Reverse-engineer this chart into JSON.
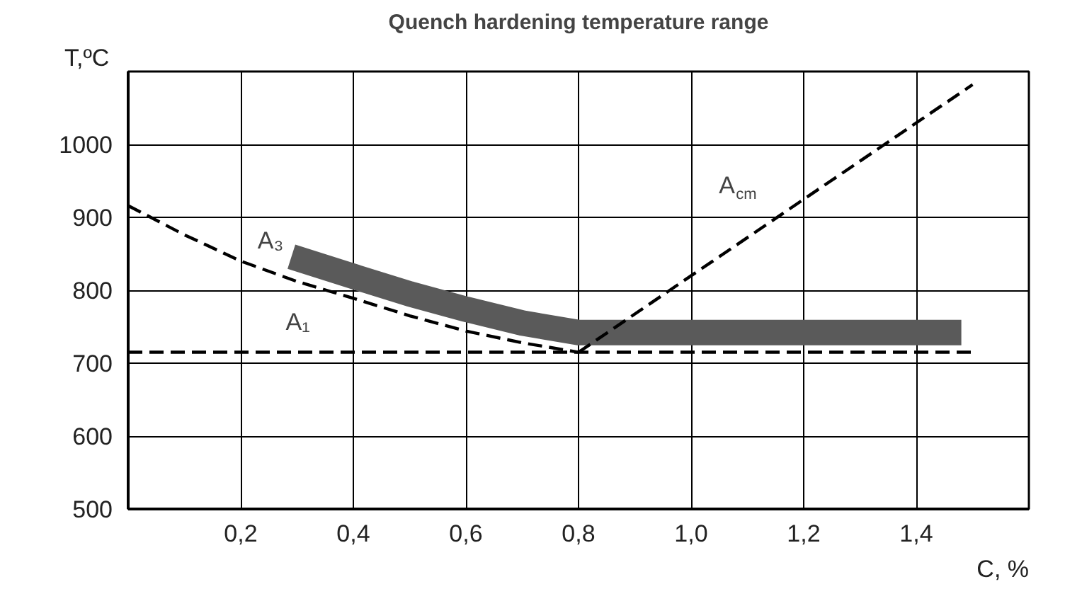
{
  "chart_data": {
    "type": "line",
    "title": "Quench hardening temperature range",
    "xlabel": "C, %",
    "ylabel": "T,ºC",
    "xlim": [
      0,
      1.6
    ],
    "ylim": [
      500,
      1100
    ],
    "xticks": [
      {
        "value": 0.2,
        "label": "0,2"
      },
      {
        "value": 0.4,
        "label": "0,4"
      },
      {
        "value": 0.6,
        "label": "0,6"
      },
      {
        "value": 0.8,
        "label": "0,8"
      },
      {
        "value": 1.0,
        "label": "1,0"
      },
      {
        "value": 1.2,
        "label": "1,2"
      },
      {
        "value": 1.4,
        "label": "1,4"
      }
    ],
    "yticks": [
      500,
      600,
      700,
      800,
      900,
      1000
    ],
    "grid": true,
    "line_style": "dashed",
    "series": [
      {
        "color": "#5a5a5a",
        "x": [
          0.29,
          0.4,
          0.5,
          0.6,
          0.7,
          0.8,
          1.0,
          1.2,
          1.48
        ],
        "values": [
          846,
          819,
          795,
          774,
          755,
          742,
          742,
          742,
          742
        ],
        "line_style": "solid"
      },
      {
        "color": "#000000",
        "x": [
          0,
          0.1,
          0.2,
          0.3,
          0.4,
          0.5,
          0.6,
          0.7,
          0.8
        ],
        "values": [
          916,
          876,
          840,
          812,
          789,
          765,
          744,
          728,
          715
        ]
      },
      {
        "color": "#000000",
        "x": [
          0,
          1.5
        ],
        "values": [
          715,
          715
        ]
      },
      {
        "color": "#000000",
        "x": [
          0.8,
          1.5
        ],
        "values": [
          715,
          1082
        ]
      }
    ],
    "annotations": [
      {
        "text": "A₃",
        "x": 0.25,
        "y": 826
      },
      {
        "text": "A₁",
        "x": 0.3,
        "y": 715
      },
      {
        "text": "A$_{cm}$",
        "x": 1.15,
        "y": 898
      }
    ]
  }
}
